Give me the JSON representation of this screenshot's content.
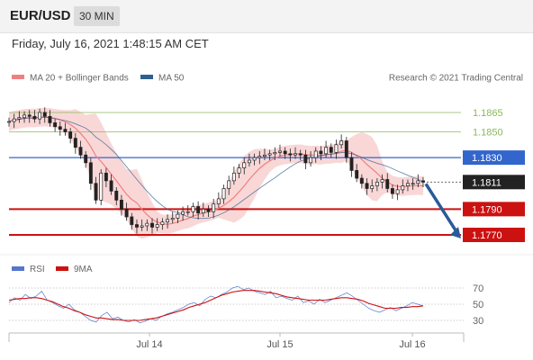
{
  "header": {
    "symbol": "EUR/USD",
    "timeframe": "30 MIN",
    "datetime": "Friday, July 16, 2021 1:48:15 AM CET"
  },
  "colors": {
    "bollinger_band": "#f7c9c9",
    "ma20": "#f08080",
    "ma50": "#2f5f8f",
    "resistance": "#8cb85a",
    "pivot": "#3366cc",
    "support": "#cc1111",
    "price_badge": "#222222",
    "forecast_arrow": "#2a5a9a",
    "rsi": "#5577cc",
    "rsi_ma": "#cc1111",
    "candle": "#222222"
  },
  "chart_data": [
    {
      "type": "candlestick",
      "legend": [
        {
          "name": "MA 20 + Bollinger Bands",
          "color": "#f08080"
        },
        {
          "name": "MA 50",
          "color": "#2f5f8f"
        }
      ],
      "legend_placement": "top-left",
      "copyright": "Research © 2021 Trading Central",
      "x_ticks": [
        "Jul 14",
        "Jul 15",
        "Jul 16"
      ],
      "ylim": [
        1.176,
        1.188
      ],
      "levels": [
        {
          "value": 1.1865,
          "label": "1.1865",
          "kind": "resistance"
        },
        {
          "value": 1.185,
          "label": "1.1850",
          "kind": "resistance"
        },
        {
          "value": 1.183,
          "label": "1.1830",
          "kind": "pivot"
        },
        {
          "value": 1.179,
          "label": "1.1790",
          "kind": "support"
        },
        {
          "value": 1.177,
          "label": "1.1770",
          "kind": "support"
        }
      ],
      "current_price": {
        "value": 1.1811,
        "label": "1.1811"
      },
      "forecast_arrow": {
        "from": 1.1811,
        "to": 1.177
      },
      "close_series": [
        1.1858,
        1.186,
        1.1861,
        1.1863,
        1.1862,
        1.186,
        1.1865,
        1.1862,
        1.1857,
        1.1854,
        1.1852,
        1.185,
        1.1845,
        1.1838,
        1.1832,
        1.1826,
        1.181,
        1.1797,
        1.1818,
        1.1812,
        1.1804,
        1.1797,
        1.179,
        1.1784,
        1.1778,
        1.1776,
        1.1777,
        1.1779,
        1.1776,
        1.1778,
        1.178,
        1.1782,
        1.1783,
        1.1786,
        1.1788,
        1.1788,
        1.1792,
        1.1787,
        1.179,
        1.1788,
        1.1794,
        1.1798,
        1.1806,
        1.1812,
        1.1818,
        1.1822,
        1.1826,
        1.1828,
        1.183,
        1.1831,
        1.1832,
        1.1833,
        1.1834,
        1.1835,
        1.1833,
        1.1832,
        1.1833,
        1.1832,
        1.1826,
        1.183,
        1.1835,
        1.1833,
        1.1838,
        1.1834,
        1.184,
        1.1843,
        1.183,
        1.182,
        1.1814,
        1.181,
        1.1806,
        1.1808,
        1.1811,
        1.1813,
        1.1806,
        1.1802,
        1.1805,
        1.1808,
        1.181,
        1.181,
        1.1812,
        1.1811
      ]
    },
    {
      "type": "line",
      "legend": [
        {
          "name": "RSI",
          "color": "#5577cc"
        },
        {
          "name": "9MA",
          "color": "#cc1111"
        }
      ],
      "ylim": [
        20,
        80
      ],
      "y_ticks": [
        70,
        50,
        30
      ],
      "series": [
        {
          "name": "RSI",
          "values": [
            52,
            58,
            55,
            62,
            57,
            60,
            66,
            55,
            52,
            48,
            45,
            50,
            43,
            40,
            35,
            30,
            28,
            36,
            40,
            32,
            34,
            30,
            28,
            31,
            27,
            29,
            32,
            30,
            35,
            38,
            40,
            43,
            46,
            50,
            52,
            48,
            56,
            60,
            58,
            62,
            65,
            70,
            72,
            68,
            70,
            66,
            64,
            62,
            66,
            58,
            60,
            57,
            55,
            60,
            52,
            54,
            50,
            56,
            52,
            55,
            58,
            61,
            64,
            60,
            55,
            50,
            45,
            42,
            40,
            43,
            46,
            42,
            45,
            48,
            52,
            50,
            48
          ]
        },
        {
          "name": "9MA",
          "values": [
            55,
            56,
            57,
            57,
            58,
            58,
            57,
            55,
            53,
            50,
            47,
            45,
            42,
            40,
            37,
            35,
            33,
            33,
            32,
            31,
            31,
            30,
            30,
            30,
            30,
            31,
            32,
            33,
            35,
            37,
            39,
            41,
            43,
            46,
            48,
            50,
            52,
            55,
            58,
            61,
            63,
            65,
            66,
            67,
            67,
            67,
            66,
            65,
            64,
            63,
            61,
            59,
            58,
            57,
            56,
            55,
            55,
            55,
            55,
            56,
            57,
            58,
            58,
            57,
            56,
            54,
            51,
            49,
            47,
            45,
            45,
            45,
            46,
            46,
            47,
            47,
            48
          ]
        }
      ]
    }
  ]
}
